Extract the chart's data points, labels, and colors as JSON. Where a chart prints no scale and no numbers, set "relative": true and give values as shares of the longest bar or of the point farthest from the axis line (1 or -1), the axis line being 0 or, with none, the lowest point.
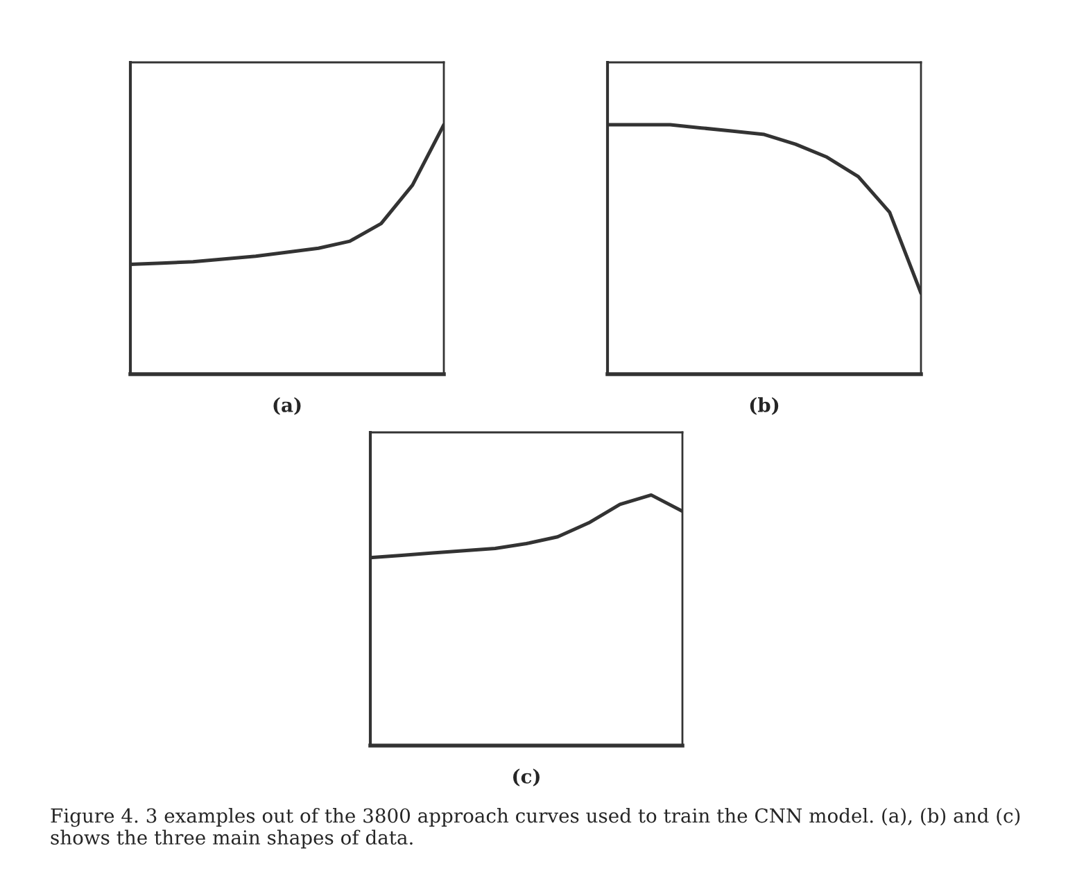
{
  "chart_data": [
    {
      "type": "line",
      "relative": true,
      "tick_labels": false,
      "xlabel": "(a)",
      "categories": [
        null,
        null,
        null,
        null,
        null,
        null,
        null,
        null,
        null,
        null,
        null
      ],
      "series": [
        {
          "color": "#333333",
          "values": [
            0.44,
            0.445,
            0.451,
            0.462,
            0.473,
            0.489,
            0.505,
            0.533,
            0.604,
            0.758,
            1
          ]
        }
      ]
    },
    {
      "type": "line",
      "relative": true,
      "tick_labels": false,
      "xlabel": "(b)",
      "categories": [
        null,
        null,
        null,
        null,
        null,
        null,
        null,
        null,
        null,
        null,
        null
      ],
      "series": [
        {
          "color": "#333333",
          "values": [
            1,
            1,
            1,
            0.987,
            0.974,
            0.961,
            0.922,
            0.87,
            0.792,
            0.649,
            0.325
          ]
        }
      ]
    },
    {
      "type": "line",
      "relative": true,
      "tick_labels": false,
      "xlabel": "(c)",
      "categories": [
        null,
        null,
        null,
        null,
        null,
        null,
        null,
        null,
        null,
        null,
        null
      ],
      "series": [
        {
          "color": "#333333",
          "values": [
            0.75,
            0.759,
            0.769,
            0.778,
            0.787,
            0.806,
            0.833,
            0.889,
            0.963,
            1,
            0.935
          ]
        }
      ],
      "annotations": [
        "Figure 4. 3 examples out of the 3800 approach curves used to train the CNN model. (a), (b) and (c) shows the three main shapes of data."
      ]
    }
  ]
}
